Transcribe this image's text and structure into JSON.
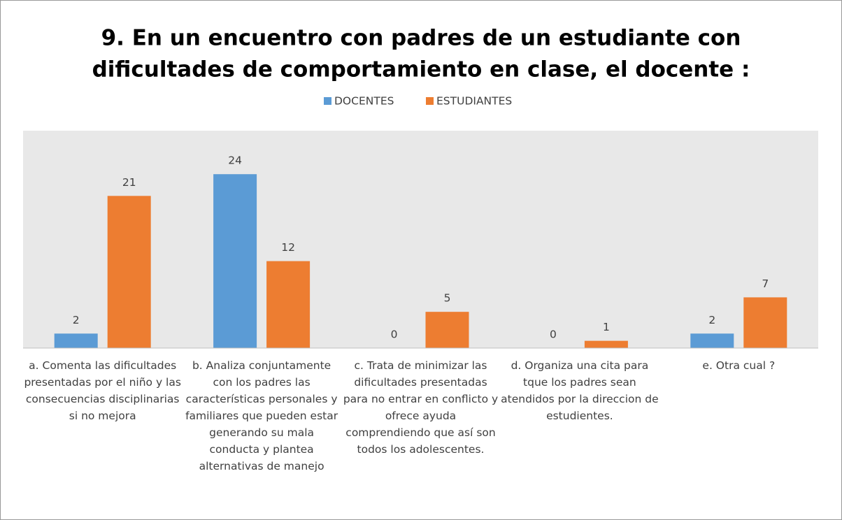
{
  "chart_data": {
    "type": "bar",
    "title": "9. En un encuentro con padres de un estudiante con dificultades de comportamiento en clase, el docente :",
    "categories": [
      "a. Comenta las dificultades presentadas por el niño y las consecuencias disciplinarias si no mejora",
      "b. Analiza conjuntamente con los padres las características personales y familiares que pueden estar generando su mala conducta y plantea alternativas de manejo",
      "c. Trata de minimizar las dificultades presentadas para no entrar en conflicto y ofrece ayuda comprendiendo que así son todos los adolescentes.",
      "d. Organiza una cita para tque los padres sean atendidos por la direccion de estudientes.",
      "e. Otra cual ?"
    ],
    "series": [
      {
        "name": "DOCENTES",
        "color": "#5b9bd5",
        "values": [
          2,
          24,
          0,
          0,
          2
        ]
      },
      {
        "name": "ESTUDIANTES",
        "color": "#ed7d31",
        "values": [
          21,
          12,
          5,
          1,
          7
        ]
      }
    ],
    "ylim": [
      0,
      30
    ],
    "legend": "top"
  }
}
